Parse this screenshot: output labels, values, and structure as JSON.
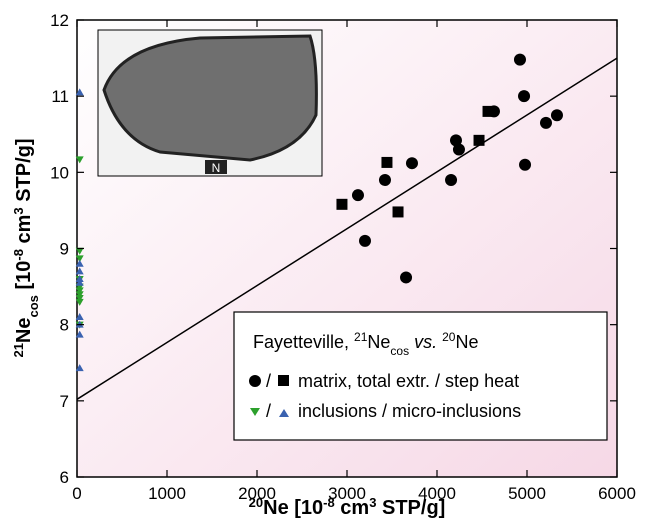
{
  "chart_data": {
    "type": "scatter",
    "xlim": [
      0,
      6000
    ],
    "xticks": [
      0,
      1000,
      2000,
      3000,
      4000,
      5000,
      6000
    ],
    "ylim": [
      6,
      12
    ],
    "yticks": [
      6,
      7,
      8,
      9,
      10,
      11,
      12
    ],
    "x_label": [
      "20",
      "Ne [10",
      "-8",
      " cm",
      "3",
      " STP/g]"
    ],
    "y_label": [
      "21",
      "Ne",
      "cos",
      " [10",
      "-8",
      " cm",
      "3",
      " STP/g]"
    ],
    "legend_title": [
      "Fayetteville, ",
      "21",
      "Ne",
      "cos",
      " vs. ",
      "20",
      "Ne"
    ],
    "legend_rows": [
      {
        "separator": "/",
        "label": "matrix, total extr. / step heat"
      },
      {
        "separator": "/",
        "label": "inclusions / micro-inclusions"
      }
    ],
    "inset_label": "N",
    "series": [
      {
        "marker": "circle",
        "color": "#000000",
        "x": [
          3122,
          3422,
          3722,
          3200,
          3656,
          4156,
          4211,
          4244,
          4633,
          4978,
          5211,
          5333,
          4922,
          4967
        ],
        "values": [
          9.7,
          9.9,
          10.12,
          9.1,
          8.62,
          9.9,
          10.42,
          10.3,
          10.8,
          10.1,
          10.65,
          10.75,
          11.48,
          11.0
        ]
      },
      {
        "marker": "square",
        "color": "#000000",
        "x": [
          2944,
          3444,
          3567,
          4467,
          4567
        ],
        "values": [
          9.58,
          10.13,
          9.48,
          10.42,
          10.8
        ]
      },
      {
        "marker": "triangle-down",
        "color": "#2ca02c",
        "x": [
          30,
          30,
          30,
          30,
          30,
          30,
          30,
          30,
          30,
          30
        ],
        "values": [
          10.17,
          8.97,
          8.87,
          8.6,
          8.5,
          8.45,
          8.4,
          8.35,
          8.3,
          8.0
        ]
      },
      {
        "marker": "triangle-up",
        "color": "#3a62b0",
        "x": [
          30,
          30,
          30,
          30,
          30,
          30,
          30,
          30,
          30
        ],
        "values": [
          11.05,
          8.8,
          8.7,
          8.6,
          8.55,
          8.1,
          8.0,
          7.87,
          7.43
        ]
      },
      {
        "marker": "line",
        "color": "#000000",
        "x": [
          0,
          6000
        ],
        "values": [
          7.02,
          11.5
        ]
      }
    ]
  }
}
